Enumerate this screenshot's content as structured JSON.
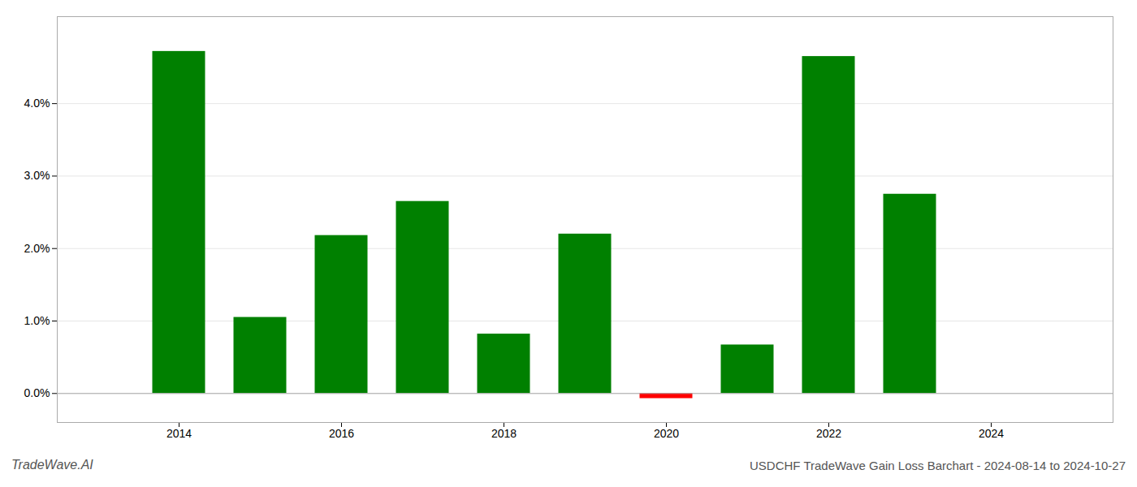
{
  "chart_data": {
    "type": "bar",
    "title": "USDCHF TradeWave Gain Loss Barchart - 2024-08-14 to 2024-10-27",
    "annotations": [
      "TradeWave.AI"
    ],
    "x": [
      2014,
      2015,
      2016,
      2017,
      2018,
      2019,
      2020,
      2021,
      2022,
      2023
    ],
    "values": [
      0.0472,
      0.0105,
      0.0218,
      0.0265,
      0.0082,
      0.022,
      -0.0007,
      0.0067,
      0.0465,
      0.0275
    ],
    "colors": [
      "#008000",
      "#008000",
      "#008000",
      "#008000",
      "#008000",
      "#008000",
      "#ff0000",
      "#008000",
      "#008000",
      "#008000"
    ],
    "xlim": [
      2012.5,
      2025.5
    ],
    "xticks": [
      2014,
      2016,
      2018,
      2020,
      2022,
      2024
    ],
    "ylim": [
      -0.004,
      0.052
    ],
    "yticks": [
      {
        "value": 0.0,
        "label": "0.0%"
      },
      {
        "value": 0.01,
        "label": "1.0%"
      },
      {
        "value": 0.02,
        "label": "2.0%"
      },
      {
        "value": 0.03,
        "label": "3.0%"
      },
      {
        "value": 0.04,
        "label": "4.0%"
      }
    ],
    "grid": "y"
  }
}
